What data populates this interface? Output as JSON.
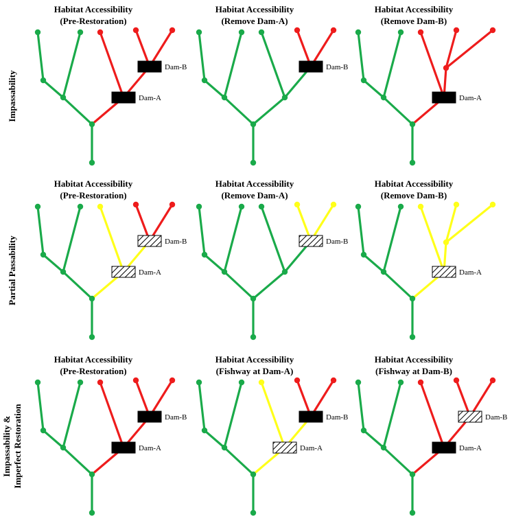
{
  "colors": {
    "accessible": "#1aaa4a",
    "inaccessible": "#ee1c1c",
    "partial": "#ffff1a",
    "dam_fill": "#000000"
  },
  "legend_semantics": [
    "accessible",
    "inaccessible",
    "partial"
  ],
  "rows": [
    {
      "label_lines": [
        "Impassability"
      ],
      "panels": [
        {
          "title1": "Habitat Accessibility",
          "title2": "(Pre-Restoration)",
          "seg_colors": [
            "accessible",
            "accessible",
            "accessible",
            "accessible",
            "accessible",
            "inaccessible",
            "inaccessible",
            "inaccessible",
            "inaccessible"
          ],
          "damA": "solid",
          "damB": "solid",
          "damA_label": "Dam-A",
          "damB_label": "Dam-B"
        },
        {
          "title1": "Habitat Accessibility",
          "title2": "(Remove Dam-A)",
          "seg_colors": [
            "accessible",
            "accessible",
            "accessible",
            "accessible",
            "accessible",
            "accessible",
            "accessible",
            "inaccessible",
            "inaccessible"
          ],
          "damA": null,
          "damB": "solid",
          "damA_label": "",
          "damB_label": "Dam-B"
        },
        {
          "title1": "Habitat Accessibility",
          "title2": "(Remove Dam-B)",
          "seg_colors": [
            "accessible",
            "accessible",
            "accessible",
            "accessible",
            "accessible",
            "inaccessible",
            "inaccessible",
            "inaccessible",
            "inaccessible"
          ],
          "damA": "solid",
          "damB": null,
          "damA_label": "Dam-A",
          "damB_label": ""
        }
      ]
    },
    {
      "label_lines": [
        "Partial Passability"
      ],
      "panels": [
        {
          "title1": "Habitat Accessibility",
          "title2": "(Pre-Restoration)",
          "seg_colors": [
            "accessible",
            "accessible",
            "accessible",
            "accessible",
            "accessible",
            "partial",
            "partial",
            "inaccessible",
            "inaccessible"
          ],
          "damA": "hatched",
          "damB": "hatched",
          "damA_label": "Dam-A",
          "damB_label": "Dam-B"
        },
        {
          "title1": "Habitat Accessibility",
          "title2": "(Remove Dam-A)",
          "seg_colors": [
            "accessible",
            "accessible",
            "accessible",
            "accessible",
            "accessible",
            "accessible",
            "accessible",
            "partial",
            "partial"
          ],
          "damA": null,
          "damB": "hatched",
          "damA_label": "",
          "damB_label": "Dam-B"
        },
        {
          "title1": "Habitat Accessibility",
          "title2": "(Remove Dam-B)",
          "seg_colors": [
            "accessible",
            "accessible",
            "accessible",
            "accessible",
            "accessible",
            "partial",
            "partial",
            "partial",
            "partial"
          ],
          "damA": "hatched",
          "damB": null,
          "damA_label": "Dam-A",
          "damB_label": ""
        }
      ]
    },
    {
      "label_lines": [
        "Impassability &",
        "Imperfect Restoration"
      ],
      "panels": [
        {
          "title1": "Habitat Accessibility",
          "title2": "(Pre-Restoration)",
          "seg_colors": [
            "accessible",
            "accessible",
            "accessible",
            "accessible",
            "accessible",
            "inaccessible",
            "inaccessible",
            "inaccessible",
            "inaccessible"
          ],
          "damA": "solid",
          "damB": "solid",
          "damA_label": "Dam-A",
          "damB_label": "Dam-B"
        },
        {
          "title1": "Habitat Accessibility",
          "title2": "(Fishway at Dam-A)",
          "seg_colors": [
            "accessible",
            "accessible",
            "accessible",
            "accessible",
            "accessible",
            "partial",
            "partial",
            "inaccessible",
            "inaccessible"
          ],
          "damA": "hatched",
          "damB": "solid",
          "damA_label": "Dam-A",
          "damB_label": "Dam-B"
        },
        {
          "title1": "Habitat Accessibility",
          "title2": "(Fishway at Dam-B)",
          "seg_colors": [
            "accessible",
            "accessible",
            "accessible",
            "accessible",
            "accessible",
            "inaccessible",
            "inaccessible",
            "inaccessible",
            "inaccessible"
          ],
          "damA": "solid",
          "damB": "hatched",
          "damA_label": "Dam-A",
          "damB_label": "Dam-B"
        }
      ]
    }
  ]
}
